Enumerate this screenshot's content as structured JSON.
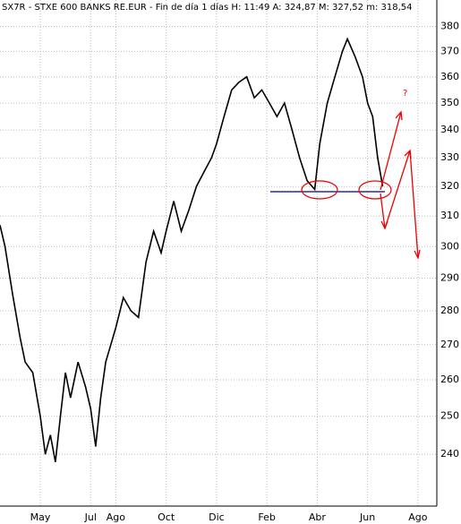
{
  "chart_data": {
    "type": "line",
    "title": "SX7R - STXE 600 BANKS RE.EUR - Fin de día 1 días H: 11:49 A: 324,87 M: 327,52 m: 318,54",
    "log_scale": true,
    "grid": true,
    "xlim": [
      -1.6,
      15.75
    ],
    "xticks": [
      {
        "value": 0,
        "label": "May"
      },
      {
        "value": 2,
        "label": "Jul"
      },
      {
        "value": 3,
        "label": "Ago"
      },
      {
        "value": 5,
        "label": "Oct"
      },
      {
        "value": 7,
        "label": "Dic"
      },
      {
        "value": 9,
        "label": "Feb"
      },
      {
        "value": 11,
        "label": "Abr"
      },
      {
        "value": 13,
        "label": "Jun"
      },
      {
        "value": 15,
        "label": "Ago"
      }
    ],
    "ylim": [
      227,
      391
    ],
    "yticks": [
      240,
      250,
      260,
      270,
      280,
      290,
      300,
      310,
      320,
      330,
      340,
      350,
      360,
      370,
      380
    ],
    "x": [
      -1.6,
      -1.4,
      -1.1,
      -0.8,
      -0.6,
      -0.3,
      0,
      0.2,
      0.4,
      0.6,
      0.8,
      1.0,
      1.2,
      1.5,
      1.8,
      2.0,
      2.2,
      2.4,
      2.6,
      2.8,
      3.0,
      3.3,
      3.6,
      3.9,
      4.2,
      4.5,
      4.8,
      5.0,
      5.3,
      5.6,
      5.9,
      6.2,
      6.5,
      6.8,
      7.0,
      7.3,
      7.6,
      7.9,
      8.2,
      8.5,
      8.8,
      9.1,
      9.4,
      9.7,
      10.0,
      10.3,
      10.6,
      10.9,
      11.1,
      11.4,
      11.7,
      12.0,
      12.2,
      12.5,
      12.8,
      13.0,
      13.2,
      13.4,
      13.6
    ],
    "series": [
      {
        "name": "SX7R",
        "color": "#000000",
        "values": [
          307,
          300,
          285,
          272,
          265,
          262,
          250,
          240,
          245,
          238,
          250,
          262,
          255,
          265,
          258,
          252,
          242,
          255,
          265,
          270,
          275,
          284,
          280,
          278,
          295,
          305,
          298,
          305,
          315,
          305,
          312,
          320,
          325,
          330,
          335,
          345,
          355,
          358,
          360,
          352,
          355,
          350,
          345,
          350,
          340,
          330,
          322,
          319,
          335,
          350,
          360,
          370,
          375,
          368,
          360,
          350,
          345,
          330,
          320
        ]
      }
    ]
  }
}
